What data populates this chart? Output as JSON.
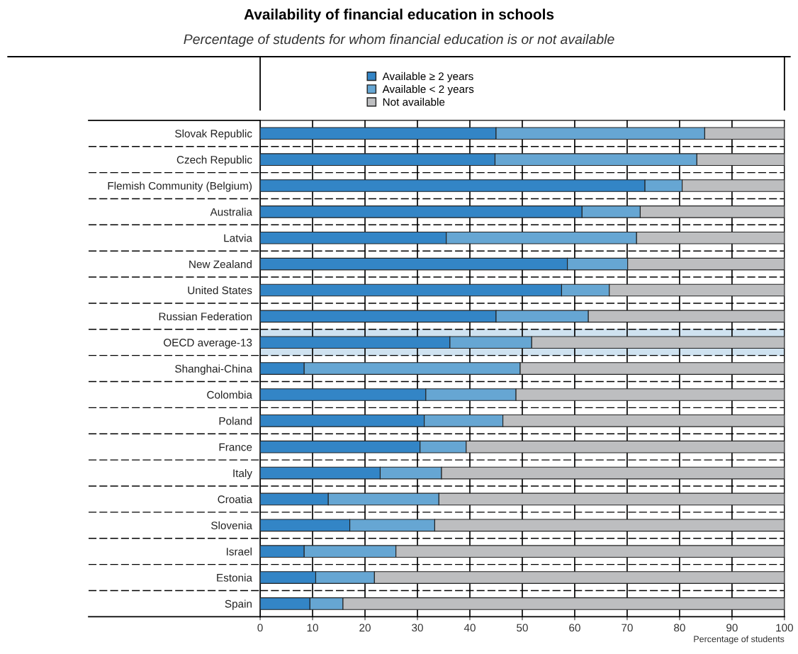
{
  "chart_data": {
    "type": "bar",
    "orientation": "horizontal",
    "stacked": true,
    "title": "Availability of financial education in schools",
    "subtitle": "Percentage of students for whom financial education is or not available",
    "xlabel": "Percentage of students",
    "categories": [
      "Slovak Republic",
      "Czech Republic",
      "Flemish Community (Belgium)",
      "Australia",
      "Latvia",
      "New Zealand",
      "United States",
      "Russian Federation",
      "OECD average-13",
      "Shanghai-China",
      "Colombia",
      "Poland",
      "France",
      "Italy",
      "Croatia",
      "Slovenia",
      "Israel",
      "Estonia",
      "Spain"
    ],
    "series": [
      {
        "name": "Available ≥ 2 years",
        "color": "#3385c6",
        "values": [
          45.0,
          44.8,
          73.4,
          61.4,
          35.5,
          58.6,
          57.5,
          45.0,
          36.2,
          8.4,
          31.6,
          31.3,
          30.5,
          22.9,
          13.0,
          17.1,
          8.4,
          10.6,
          9.5
        ]
      },
      {
        "name": "Available < 2 years",
        "color": "#66a6d3",
        "values": [
          39.8,
          38.5,
          7.1,
          11.1,
          36.3,
          11.5,
          9.1,
          17.6,
          15.6,
          41.2,
          17.2,
          15.0,
          8.8,
          11.7,
          21.1,
          16.2,
          17.5,
          11.2,
          6.3
        ]
      },
      {
        "name": "Not available",
        "color": "#bdbec0",
        "values": [
          15.2,
          16.7,
          19.5,
          27.5,
          28.2,
          29.9,
          33.4,
          37.4,
          48.2,
          50.4,
          51.2,
          53.7,
          60.7,
          65.4,
          65.9,
          66.7,
          74.1,
          78.2,
          84.2
        ]
      }
    ],
    "xlim": [
      0,
      100
    ],
    "xticks": [
      0,
      10,
      20,
      30,
      40,
      50,
      60,
      70,
      80,
      90,
      100
    ],
    "grid": "x",
    "legend": "top",
    "bands": [
      {
        "axis": "y",
        "from": "OECD average-13",
        "to": "OECD average-13",
        "color": "#cfe2f0"
      }
    ]
  }
}
